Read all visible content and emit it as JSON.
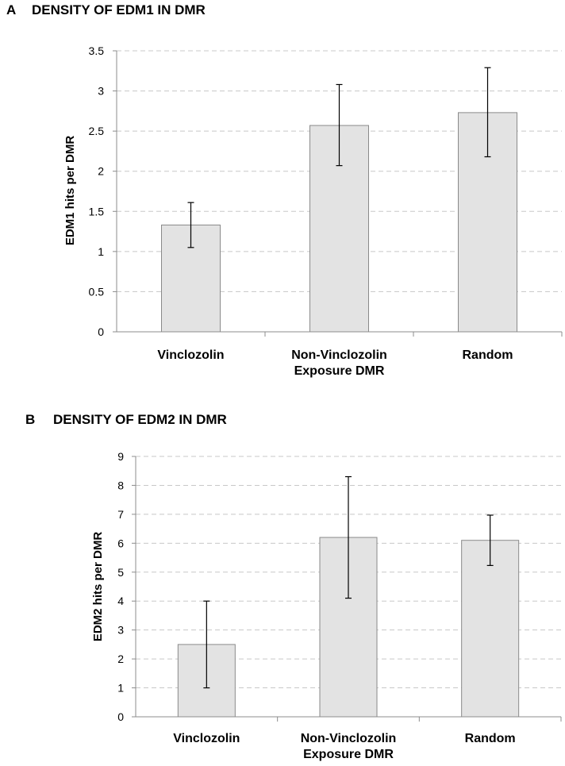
{
  "chart_data": [
    {
      "type": "bar",
      "panel_letter": "A",
      "title": "DENSITY OF EDM1 IN DMR",
      "ylabel": "EDM1 hits per DMR",
      "xlabel": "",
      "categories": [
        "Vinclozolin",
        [
          "Non-Vinclozolin",
          "Exposure DMR"
        ],
        "Random"
      ],
      "values": [
        1.33,
        2.57,
        2.73
      ],
      "error_low": [
        1.05,
        2.07,
        2.18
      ],
      "error_high": [
        1.61,
        3.08,
        3.29
      ],
      "ylim": [
        0,
        3.5
      ],
      "yticks": [
        0,
        0.5,
        1,
        1.5,
        2,
        2.5,
        3,
        3.5
      ],
      "ytick_labels": [
        "0",
        "0.5",
        "1",
        "1.5",
        "2",
        "2.5",
        "3",
        "3.5"
      ],
      "grid": true
    },
    {
      "type": "bar",
      "panel_letter": "B",
      "title": "DENSITY OF EDM2 IN DMR",
      "ylabel": "EDM2 hits per DMR",
      "xlabel": "",
      "categories": [
        "Vinclozolin",
        [
          "Non-Vinclozolin",
          "Exposure DMR"
        ],
        "Random"
      ],
      "values": [
        2.5,
        6.2,
        6.1
      ],
      "error_low": [
        1.0,
        4.1,
        5.23
      ],
      "error_high": [
        4.0,
        8.3,
        6.97
      ],
      "ylim": [
        0,
        9
      ],
      "yticks": [
        0,
        1,
        2,
        3,
        4,
        5,
        6,
        7,
        8,
        9
      ],
      "ytick_labels": [
        "0",
        "1",
        "2",
        "3",
        "4",
        "5",
        "6",
        "7",
        "8",
        "9"
      ],
      "grid": true
    }
  ]
}
